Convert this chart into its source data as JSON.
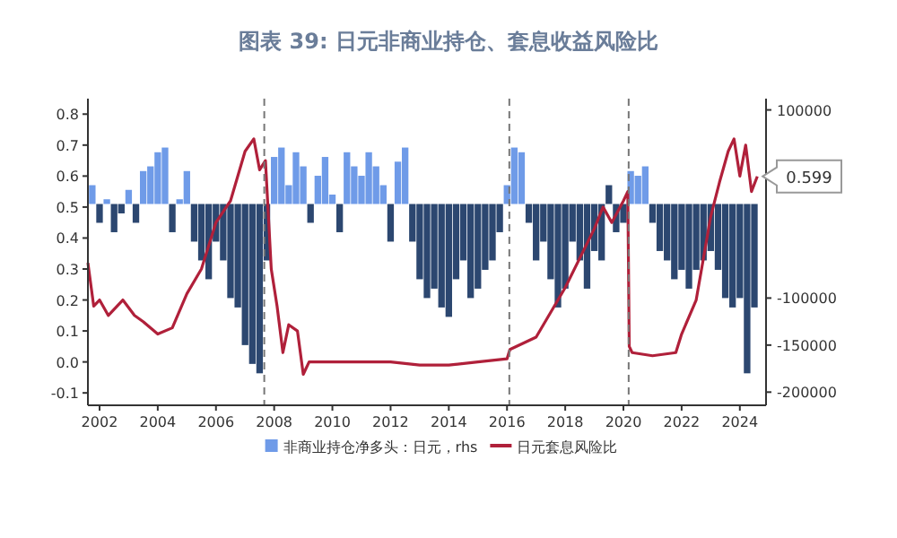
{
  "chart_data": {
    "type": "bar",
    "title": "图表 39: 日元非商业持仓、套息收益风险比",
    "xlim": [
      2001.6,
      2024.9
    ],
    "xticks": [
      2002,
      2004,
      2006,
      2008,
      2010,
      2012,
      2014,
      2016,
      2018,
      2020,
      2022,
      2024
    ],
    "ylim": [
      -0.14,
      0.85
    ],
    "yticks": [
      -0.1,
      {
        "value": 0,
        "label": "0.0"
      },
      0.1,
      0.2,
      0.3,
      0.4,
      0.5,
      0.6,
      0.7,
      0.8
    ],
    "y2lim": [
      -214000,
      112000
    ],
    "y2ticks": [
      -200000,
      -150000,
      -100000,
      100000
    ],
    "legend": "bottom",
    "series": [
      {
        "name": "非商业持仓净多头：日元，rhs",
        "axis": "y2",
        "color": "#6f9be8",
        "x": [
          2001.75,
          2002,
          2002.25,
          2002.5,
          2002.75,
          2003,
          2003.25,
          2003.5,
          2003.75,
          2004,
          2004.25,
          2004.5,
          2004.75,
          2005,
          2005.25,
          2005.5,
          2005.75,
          2006,
          2006.25,
          2006.5,
          2006.75,
          2007,
          2007.25,
          2007.5,
          2007.75,
          2008,
          2008.25,
          2008.5,
          2008.75,
          2009,
          2009.25,
          2009.5,
          2009.75,
          2010,
          2010.25,
          2010.5,
          2010.75,
          2011,
          2011.25,
          2011.5,
          2011.75,
          2012,
          2012.25,
          2012.5,
          2012.75,
          2013,
          2013.25,
          2013.5,
          2013.75,
          2014,
          2014.25,
          2014.5,
          2014.75,
          2015,
          2015.25,
          2015.5,
          2015.75,
          2016,
          2016.25,
          2016.5,
          2016.75,
          2017,
          2017.25,
          2017.5,
          2017.75,
          2018,
          2018.25,
          2018.5,
          2018.75,
          2019,
          2019.25,
          2019.5,
          2019.75,
          2020,
          2020.25,
          2020.5,
          2020.75,
          2021,
          2021.25,
          2021.5,
          2021.75,
          2022,
          2022.25,
          2022.5,
          2022.75,
          2023,
          2023.25,
          2023.5,
          2023.75,
          2024,
          2024.25,
          2024.5
        ],
        "values": [
          20000,
          -20000,
          5000,
          -30000,
          -10000,
          15000,
          -20000,
          35000,
          40000,
          55000,
          60000,
          -30000,
          5000,
          35000,
          -40000,
          -60000,
          -80000,
          -40000,
          -60000,
          -100000,
          -110000,
          -150000,
          -170000,
          -180000,
          -60000,
          50000,
          60000,
          20000,
          55000,
          40000,
          -20000,
          30000,
          50000,
          10000,
          -30000,
          55000,
          40000,
          30000,
          55000,
          40000,
          20000,
          -40000,
          45000,
          60000,
          -40000,
          -80000,
          -100000,
          -90000,
          -110000,
          -120000,
          -80000,
          -60000,
          -100000,
          -90000,
          -70000,
          -60000,
          -30000,
          20000,
          60000,
          55000,
          -20000,
          -60000,
          -40000,
          -80000,
          -110000,
          -90000,
          -40000,
          -60000,
          -90000,
          -50000,
          -60000,
          20000,
          -30000,
          -20000,
          35000,
          30000,
          40000,
          -20000,
          -50000,
          -60000,
          -80000,
          -70000,
          -90000,
          -70000,
          -60000,
          -50000,
          -70000,
          -100000,
          -110000,
          -100000,
          -180000,
          -110000
        ],
        "colors": [
          "#6f9be8",
          "#2c4770",
          "#6f9be8",
          "#2c4770",
          "#2c4770",
          "#6f9be8",
          "#2c4770",
          "#6f9be8",
          "#6f9be8",
          "#6f9be8",
          "#6f9be8",
          "#2c4770",
          "#6f9be8",
          "#6f9be8",
          "#2c4770",
          "#2c4770",
          "#2c4770",
          "#2c4770",
          "#2c4770",
          "#2c4770",
          "#2c4770",
          "#2c4770",
          "#2c4770",
          "#2c4770",
          "#2c4770",
          "#6f9be8",
          "#6f9be8",
          "#6f9be8",
          "#6f9be8",
          "#6f9be8",
          "#2c4770",
          "#6f9be8",
          "#6f9be8",
          "#6f9be8",
          "#2c4770",
          "#6f9be8",
          "#6f9be8",
          "#6f9be8",
          "#6f9be8",
          "#6f9be8",
          "#6f9be8",
          "#2c4770",
          "#6f9be8",
          "#6f9be8",
          "#2c4770",
          "#2c4770",
          "#2c4770",
          "#2c4770",
          "#2c4770",
          "#2c4770",
          "#2c4770",
          "#2c4770",
          "#2c4770",
          "#2c4770",
          "#2c4770",
          "#2c4770",
          "#2c4770",
          "#6f9be8",
          "#6f9be8",
          "#6f9be8",
          "#2c4770",
          "#2c4770",
          "#2c4770",
          "#2c4770",
          "#2c4770",
          "#2c4770",
          "#2c4770",
          "#2c4770",
          "#2c4770",
          "#2c4770",
          "#2c4770",
          "#2c4770",
          "#2c4770",
          "#2c4770",
          "#6f9be8",
          "#6f9be8",
          "#6f9be8",
          "#2c4770",
          "#2c4770",
          "#2c4770",
          "#2c4770",
          "#2c4770",
          "#2c4770",
          "#2c4770",
          "#2c4770",
          "#2c4770",
          "#2c4770",
          "#2c4770",
          "#2c4770",
          "#2c4770",
          "#2c4770",
          "#2c4770"
        ]
      },
      {
        "name": "日元套息风险比",
        "type": "line",
        "color": "#b0203a",
        "x": [
          2001.6,
          2001.8,
          2002,
          2002.3,
          2002.8,
          2003.2,
          2003.5,
          2004,
          2004.5,
          2005,
          2005.5,
          2006,
          2006.5,
          2007,
          2007.3,
          2007.5,
          2007.7,
          2007.9,
          2008.1,
          2008.3,
          2008.5,
          2008.8,
          2009,
          2009.2,
          2010,
          2012,
          2013,
          2014,
          2015,
          2016,
          2016.1,
          2017,
          2018,
          2019,
          2019.3,
          2019.6,
          2020,
          2020.15,
          2020.2,
          2020.3,
          2021,
          2021.8,
          2022,
          2022.5,
          2023,
          2023.3,
          2023.6,
          2023.8,
          2024,
          2024.2,
          2024.4,
          2024.6
        ],
        "values": [
          0.32,
          0.18,
          0.2,
          0.15,
          0.2,
          0.15,
          0.13,
          0.09,
          0.11,
          0.22,
          0.3,
          0.45,
          0.52,
          0.68,
          0.72,
          0.62,
          0.65,
          0.3,
          0.18,
          0.03,
          0.12,
          0.1,
          -0.04,
          0.0,
          0.0,
          0.0,
          -0.01,
          -0.01,
          0.0,
          0.01,
          0.04,
          0.08,
          0.24,
          0.43,
          0.5,
          0.45,
          0.52,
          0.55,
          0.05,
          0.03,
          0.02,
          0.03,
          0.09,
          0.2,
          0.47,
          0.58,
          0.68,
          0.72,
          0.6,
          0.7,
          0.55,
          0.599
        ]
      }
    ],
    "ref_lines": [
      {
        "axis": "x",
        "value": 2007.66,
        "line_style": "dashed",
        "color": "#777777"
      },
      {
        "axis": "x",
        "value": 2016.08,
        "line_style": "dashed",
        "color": "#777777"
      },
      {
        "axis": "x",
        "value": 2020.18,
        "line_style": "dashed",
        "color": "#777777"
      }
    ],
    "annotations": [
      {
        "text": "0.599",
        "x": 2024.6,
        "y": 0.599
      }
    ]
  }
}
